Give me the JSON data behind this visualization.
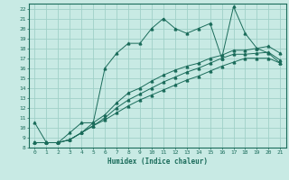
{
  "xlabel": "Humidex (Indice chaleur)",
  "background_color": "#c8eae4",
  "grid_color": "#a0d0c8",
  "line_color": "#1a6b5a",
  "spine_color": "#1a6b5a",
  "xlim": [
    -0.5,
    21.5
  ],
  "ylim": [
    8,
    22.5
  ],
  "xticks": [
    0,
    1,
    2,
    3,
    4,
    5,
    6,
    7,
    8,
    9,
    10,
    11,
    12,
    13,
    14,
    15,
    16,
    17,
    18,
    19,
    20,
    21
  ],
  "yticks": [
    8,
    9,
    10,
    11,
    12,
    13,
    14,
    15,
    16,
    17,
    18,
    19,
    20,
    21,
    22
  ],
  "main_x": [
    0,
    1,
    2,
    3,
    4,
    5,
    6,
    7,
    8,
    9,
    10,
    11,
    12,
    13,
    14,
    15,
    16,
    17,
    18,
    19,
    20,
    21
  ],
  "main_y": [
    10.5,
    8.5,
    8.5,
    9.5,
    10.5,
    10.5,
    16.0,
    17.5,
    18.5,
    18.5,
    20.0,
    21.0,
    20.0,
    19.5,
    20.0,
    20.5,
    17.0,
    22.2,
    19.5,
    18.0,
    17.5,
    16.5
  ],
  "line2_x": [
    0,
    1,
    2,
    3,
    4,
    5,
    6,
    7,
    8,
    9,
    10,
    11,
    12,
    13,
    14,
    15,
    16,
    17,
    18,
    19,
    20,
    21
  ],
  "line2_y": [
    8.5,
    8.5,
    8.5,
    8.8,
    9.5,
    10.2,
    10.8,
    11.5,
    12.2,
    12.8,
    13.3,
    13.8,
    14.3,
    14.8,
    15.2,
    15.7,
    16.2,
    16.6,
    17.0,
    17.0,
    17.0,
    16.5
  ],
  "line3_x": [
    0,
    1,
    2,
    3,
    4,
    5,
    6,
    7,
    8,
    9,
    10,
    11,
    12,
    13,
    14,
    15,
    16,
    17,
    18,
    19,
    20,
    21
  ],
  "line3_y": [
    8.5,
    8.5,
    8.5,
    8.8,
    9.5,
    10.2,
    11.0,
    12.0,
    12.8,
    13.4,
    14.0,
    14.6,
    15.1,
    15.6,
    16.0,
    16.5,
    17.0,
    17.4,
    17.4,
    17.5,
    17.6,
    16.8
  ],
  "line4_x": [
    0,
    1,
    2,
    3,
    4,
    5,
    6,
    7,
    8,
    9,
    10,
    11,
    12,
    13,
    14,
    15,
    16,
    17,
    18,
    19,
    20,
    21
  ],
  "line4_y": [
    8.5,
    8.5,
    8.5,
    8.8,
    9.5,
    10.5,
    11.3,
    12.5,
    13.5,
    14.0,
    14.7,
    15.3,
    15.8,
    16.2,
    16.5,
    17.0,
    17.3,
    17.8,
    17.8,
    18.0,
    18.2,
    17.5
  ]
}
